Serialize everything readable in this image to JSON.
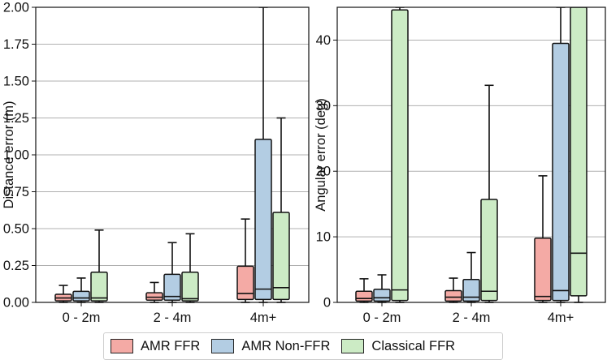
{
  "chart_data": [
    {
      "type": "box",
      "ylabel": "Distance error (m)",
      "ylim": [
        0,
        2.0
      ],
      "yticks": [
        "0.00",
        "0.25",
        "0.50",
        "0.75",
        "1.00",
        "1.25",
        "1.50",
        "1.75",
        "2.00"
      ],
      "categories": [
        "0 - 2m",
        "2 - 4m",
        "4m+"
      ],
      "grid": "y",
      "series": [
        {
          "name": "AMR FFR",
          "boxes": [
            {
              "whislo": 0,
              "q1": 0.01,
              "med": 0.03,
              "q3": 0.055,
              "whishi": 0.115
            },
            {
              "whislo": 0,
              "q1": 0.015,
              "med": 0.035,
              "q3": 0.065,
              "whishi": 0.135
            },
            {
              "whislo": 0,
              "q1": 0.02,
              "med": 0.06,
              "q3": 0.245,
              "whishi": 0.565
            }
          ]
        },
        {
          "name": "AMR Non-FFR",
          "boxes": [
            {
              "whislo": 0,
              "q1": 0.01,
              "med": 0.03,
              "q3": 0.075,
              "whishi": 0.165
            },
            {
              "whislo": 0,
              "q1": 0.015,
              "med": 0.04,
              "q3": 0.19,
              "whishi": 0.405
            },
            {
              "whislo": 0,
              "q1": 0.02,
              "med": 0.09,
              "q3": 1.105,
              "whishi": 2.05
            }
          ]
        },
        {
          "name": "Classical FFR",
          "boxes": [
            {
              "whislo": 0,
              "q1": 0.01,
              "med": 0.03,
              "q3": 0.205,
              "whishi": 0.49
            },
            {
              "whislo": 0,
              "q1": 0.01,
              "med": 0.025,
              "q3": 0.205,
              "whishi": 0.465
            },
            {
              "whislo": 0,
              "q1": 0.02,
              "med": 0.1,
              "q3": 0.61,
              "whishi": 1.25
            }
          ]
        }
      ]
    },
    {
      "type": "box",
      "ylabel": "Angular error (deg)",
      "ylim": [
        0,
        45
      ],
      "yticks": [
        "0",
        "10",
        "20",
        "30",
        "40"
      ],
      "categories": [
        "0 - 2m",
        "2 - 4m",
        "4m+"
      ],
      "grid": "y",
      "series": [
        {
          "name": "AMR FFR",
          "boxes": [
            {
              "whislo": 0,
              "q1": 0.2,
              "med": 0.6,
              "q3": 1.7,
              "whishi": 3.6
            },
            {
              "whislo": 0,
              "q1": 0.2,
              "med": 0.8,
              "q3": 1.8,
              "whishi": 3.7
            },
            {
              "whislo": 0,
              "q1": 0.3,
              "med": 0.9,
              "q3": 9.8,
              "whishi": 19.3
            }
          ]
        },
        {
          "name": "AMR Non-FFR",
          "boxes": [
            {
              "whislo": 0,
              "q1": 0.2,
              "med": 0.7,
              "q3": 2.0,
              "whishi": 4.2
            },
            {
              "whislo": 0,
              "q1": 0.2,
              "med": 0.8,
              "q3": 3.5,
              "whishi": 7.6
            },
            {
              "whislo": 0,
              "q1": 0.3,
              "med": 1.8,
              "q3": 39.5,
              "whishi": 46
            }
          ]
        },
        {
          "name": "Classical FFR",
          "boxes": [
            {
              "whislo": 0,
              "q1": 0.3,
              "med": 1.9,
              "q3": 44.6,
              "whishi": 46
            },
            {
              "whislo": 0,
              "q1": 0.3,
              "med": 1.7,
              "q3": 15.7,
              "whishi": 33.1
            },
            {
              "whislo": 0,
              "q1": 1.0,
              "med": 7.5,
              "q3": 46,
              "whishi": 46
            }
          ]
        }
      ]
    }
  ],
  "legend": {
    "placement": "bottom-center",
    "items": [
      {
        "label": "AMR FFR",
        "color": "#f4aaa5"
      },
      {
        "label": "AMR Non-FFR",
        "color": "#b3cde3"
      },
      {
        "label": "Classical FFR",
        "color": "#ccebc5"
      }
    ]
  },
  "colors": {
    "series": [
      "#f4aaa5",
      "#b3cde3",
      "#ccebc5"
    ],
    "grid": "#b0b0b0",
    "edge": "#111111"
  }
}
